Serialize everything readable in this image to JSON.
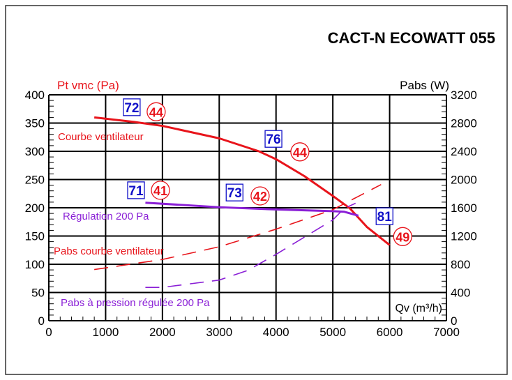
{
  "chart_data": {
    "type": "line",
    "title": "CACT-N ECOWATT 055",
    "xlabel": "Qv (m³/h)",
    "ylabel_left": "Pt vmc (Pa)",
    "ylabel_right": "Pabs (W)",
    "xlim": [
      0,
      7000
    ],
    "ylim_left": [
      0,
      400
    ],
    "ylim_right": [
      0,
      3200
    ],
    "grid": true,
    "x_ticks": [
      "0",
      "1000",
      "2000",
      "3000",
      "4000",
      "5000",
      "6000",
      "7000"
    ],
    "y_left_ticks": [
      "0",
      "50",
      "100",
      "150",
      "200",
      "250",
      "300",
      "350",
      "400"
    ],
    "y_right_ticks": [
      "0",
      "400",
      "800",
      "1200",
      "1600",
      "2000",
      "2400",
      "2800",
      "3200"
    ],
    "colors": {
      "fan": "#e8141b",
      "regulation": "#8a1fd6",
      "box": "#1010c8",
      "axis_label": "#e8141b"
    },
    "series": [
      {
        "name": "Courbe ventilateur",
        "axis": "left",
        "style": "solid",
        "color": "#e8141b",
        "x": [
          800,
          1500,
          2000,
          3000,
          3700,
          4000,
          4500,
          5000,
          5300,
          5600,
          6000
        ],
        "y": [
          360,
          352,
          345,
          323,
          300,
          286,
          256,
          221,
          199,
          166,
          134
        ]
      },
      {
        "name": "Régulation 200 Pa",
        "axis": "left",
        "style": "solid",
        "color": "#8a1fd6",
        "x": [
          1700,
          3000,
          4000,
          5000,
          5200,
          5450
        ],
        "y": [
          209,
          201,
          197,
          194,
          193,
          186
        ]
      },
      {
        "name": "Pabs courbe ventilateur",
        "axis": "right",
        "style": "dashed",
        "color": "#e8141b",
        "x": [
          800,
          2000,
          3000,
          4000,
          5000,
          5850
        ],
        "y": [
          725,
          868,
          1048,
          1297,
          1574,
          1929
        ]
      },
      {
        "name": "Pabs à pression régulée 200 Pa",
        "axis": "right",
        "style": "dashed",
        "color": "#8a1fd6",
        "x": [
          1700,
          2000,
          3000,
          3500,
          4000,
          4500,
          5000,
          5200,
          5400
        ],
        "y": [
          472,
          472,
          576,
          712,
          940,
          1184,
          1428,
          1592,
          1664
        ]
      }
    ],
    "annotations": [
      {
        "kind": "box",
        "text": "72",
        "x": 1460,
        "y": 378
      },
      {
        "kind": "circle",
        "text": "44",
        "x": 1890,
        "y": 370
      },
      {
        "kind": "box",
        "text": "76",
        "x": 3955,
        "y": 322
      },
      {
        "kind": "circle",
        "text": "44",
        "x": 4420,
        "y": 299
      },
      {
        "kind": "box",
        "text": "71",
        "x": 1535,
        "y": 231
      },
      {
        "kind": "circle",
        "text": "41",
        "x": 1965,
        "y": 231
      },
      {
        "kind": "box",
        "text": "73",
        "x": 3270,
        "y": 227
      },
      {
        "kind": "circle",
        "text": "42",
        "x": 3720,
        "y": 221
      },
      {
        "kind": "box",
        "text": "81",
        "x": 5910,
        "y": 185
      },
      {
        "kind": "circle",
        "text": "49",
        "x": 6230,
        "y": 149
      }
    ]
  }
}
